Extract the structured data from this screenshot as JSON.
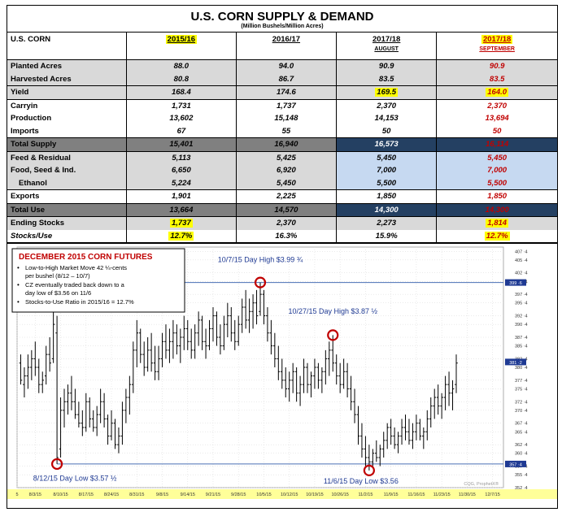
{
  "table": {
    "title": "U.S. CORN SUPPLY & DEMAND",
    "subtitle": "(Million Bushels/Million Acres)",
    "columns": [
      {
        "label": "U.S. CORN",
        "sub": ""
      },
      {
        "label": "2015/16",
        "sub": ""
      },
      {
        "label": "2016/17",
        "sub": ""
      },
      {
        "label": "2017/18",
        "sub": "AUGUST"
      },
      {
        "label": "2017/18",
        "sub": "SEPTEMBER"
      }
    ],
    "rows": [
      {
        "label": "Planted Acres",
        "values": [
          "88.0",
          "94.0",
          "90.9",
          "90.9"
        ]
      },
      {
        "label": "Harvested Acres",
        "values": [
          "80.8",
          "86.7",
          "83.5",
          "83.5"
        ]
      },
      {
        "label": "Yield",
        "values": [
          "168.4",
          "174.6",
          "169.5",
          "164.0"
        ]
      },
      {
        "label": "Carryin",
        "values": [
          "1,731",
          "1,737",
          "2,370",
          "2,370"
        ]
      },
      {
        "label": "Production",
        "values": [
          "13,602",
          "15,148",
          "14,153",
          "13,694"
        ]
      },
      {
        "label": "Imports",
        "values": [
          "67",
          "55",
          "50",
          "50"
        ]
      },
      {
        "label": "Total Supply",
        "values": [
          "15,401",
          "16,940",
          "16,573",
          "16,114"
        ]
      },
      {
        "label": "Feed & Residual",
        "values": [
          "5,113",
          "5,425",
          "5,450",
          "5,450"
        ]
      },
      {
        "label": "Food, Seed & Ind.",
        "values": [
          "6,650",
          "6,920",
          "7,000",
          "7,000"
        ]
      },
      {
        "label": "Ethanol",
        "values": [
          "5,224",
          "5,450",
          "5,500",
          "5,500"
        ]
      },
      {
        "label": "Exports",
        "values": [
          "1,901",
          "2,225",
          "1,850",
          "1,850"
        ]
      },
      {
        "label": "Total Use",
        "values": [
          "13,664",
          "14,570",
          "14,300",
          "14,300"
        ]
      },
      {
        "label": "Ending Stocks",
        "values": [
          "1,737",
          "2,370",
          "2,273",
          "1,814"
        ]
      },
      {
        "label": "Stocks/Use",
        "values": [
          "12.7%",
          "16.3%",
          "15.9%",
          "12.7%"
        ]
      }
    ]
  },
  "chart_data": {
    "type": "bar",
    "subtype": "ohlc",
    "title": "DECEMBER 2015 CORN FUTURES",
    "notes": [
      "Low-to-High Market Move 42 ¼-cents per bushel (8/12 – 10/7)",
      "CZ eventually traded back down to a day low of $3.56 on 11/6",
      "Stocks-to-Use Ratio in 2015/16 = 12.7%"
    ],
    "annotations": [
      {
        "text": "10/7/15 Day High $3.99 ¾",
        "day": 59,
        "price": 399.75
      },
      {
        "text": "10/27/15 Day High $3.87 ½",
        "day": 79,
        "price": 387.5
      },
      {
        "text": "8/12/15 Day Low $3.57 ½",
        "day": 3,
        "price": 357.5
      },
      {
        "text": "11/6/15 Day Low $3.56",
        "day": 89,
        "price": 356
      }
    ],
    "hlines": [
      399.75,
      357.5
    ],
    "ylim": [
      352,
      408
    ],
    "yticks": [
      352,
      355,
      357,
      360,
      362,
      365,
      367,
      370,
      372,
      375,
      377,
      380,
      382,
      385,
      387,
      390,
      392,
      395,
      397,
      400,
      402,
      405,
      407
    ],
    "ytick_labels": [
      "352 ·4",
      "355 ·4",
      "357 ·4",
      "360 ·4",
      "362 ·4",
      "365 ·4",
      "367 ·4",
      "370 ·4",
      "372 ·4",
      "375 ·4",
      "377 ·4",
      "380 ·4",
      "382 ·4",
      "385 ·4",
      "387 ·4",
      "390 ·4",
      "392 ·4",
      "395 ·4",
      "397 ·4",
      "400 ·4",
      "402 ·4",
      "405 ·4",
      "407 ·4"
    ],
    "price_tags": [
      {
        "value": 399.75,
        "label": "399 ·6"
      },
      {
        "value": 357.5,
        "label": "357 ·4"
      },
      {
        "value": 381.25,
        "label": "381 ·2"
      }
    ],
    "xlim": [
      -8,
      126
    ],
    "xticks": [
      -8,
      -3,
      4,
      11,
      18,
      25,
      32,
      39,
      46,
      53,
      60,
      67,
      74,
      81,
      88,
      95,
      102,
      109,
      116,
      123
    ],
    "xtick_labels": [
      "5",
      "8/3/15",
      "8/10/15",
      "8/17/15",
      "8/24/15",
      "8/31/15",
      "9/8/15",
      "9/14/15",
      "9/21/15",
      "9/28/15",
      "10/5/15",
      "10/12/15",
      "10/19/15",
      "10/26/15",
      "11/2/15",
      "11/9/15",
      "11/16/15",
      "11/23/15",
      "11/30/15",
      "12/7/15"
    ],
    "watermark": "CQG, ProphetX®",
    "bars": [
      {
        "day": -7,
        "h": 383,
        "l": 376,
        "o": 381,
        "c": 377
      },
      {
        "day": -6,
        "h": 380,
        "l": 373,
        "o": 376,
        "c": 378
      },
      {
        "day": -5,
        "h": 383,
        "l": 375,
        "o": 378,
        "c": 380
      },
      {
        "day": -4,
        "h": 384,
        "l": 377,
        "o": 380,
        "c": 382
      },
      {
        "day": -3,
        "h": 386,
        "l": 378,
        "o": 382,
        "c": 380
      },
      {
        "day": -2,
        "h": 382,
        "l": 374,
        "o": 380,
        "c": 376
      },
      {
        "day": -1,
        "h": 379,
        "l": 374,
        "o": 376,
        "c": 377
      },
      {
        "day": 0,
        "h": 385,
        "l": 376,
        "o": 378,
        "c": 383
      },
      {
        "day": 1,
        "h": 387,
        "l": 379,
        "o": 383,
        "c": 381
      },
      {
        "day": 2,
        "h": 393,
        "l": 381,
        "o": 382,
        "c": 390
      },
      {
        "day": 3,
        "h": 392,
        "l": 357.5,
        "o": 388,
        "c": 359
      },
      {
        "day": 4,
        "h": 373,
        "l": 359,
        "o": 361,
        "c": 370
      },
      {
        "day": 5,
        "h": 375,
        "l": 366,
        "o": 370,
        "c": 372
      },
      {
        "day": 6,
        "h": 376,
        "l": 369,
        "o": 372,
        "c": 374
      },
      {
        "day": 7,
        "h": 378,
        "l": 370,
        "o": 374,
        "c": 372
      },
      {
        "day": 8,
        "h": 375,
        "l": 368,
        "o": 372,
        "c": 369
      },
      {
        "day": 9,
        "h": 372,
        "l": 366,
        "o": 369,
        "c": 367
      },
      {
        "day": 10,
        "h": 370,
        "l": 364,
        "o": 367,
        "c": 366
      },
      {
        "day": 11,
        "h": 374,
        "l": 365,
        "o": 366,
        "c": 372
      },
      {
        "day": 12,
        "h": 373,
        "l": 366,
        "o": 372,
        "c": 368
      },
      {
        "day": 13,
        "h": 370,
        "l": 365,
        "o": 368,
        "c": 366
      },
      {
        "day": 14,
        "h": 371,
        "l": 364,
        "o": 366,
        "c": 369
      },
      {
        "day": 15,
        "h": 375,
        "l": 367,
        "o": 369,
        "c": 372
      },
      {
        "day": 16,
        "h": 374,
        "l": 366,
        "o": 372,
        "c": 368
      },
      {
        "day": 17,
        "h": 369,
        "l": 362,
        "o": 368,
        "c": 364
      },
      {
        "day": 18,
        "h": 370,
        "l": 363,
        "o": 364,
        "c": 367
      },
      {
        "day": 19,
        "h": 368,
        "l": 361,
        "o": 367,
        "c": 362
      },
      {
        "day": 20,
        "h": 366,
        "l": 360,
        "o": 362,
        "c": 364
      },
      {
        "day": 21,
        "h": 372,
        "l": 362,
        "o": 364,
        "c": 370
      },
      {
        "day": 22,
        "h": 375,
        "l": 367,
        "o": 370,
        "c": 373
      },
      {
        "day": 23,
        "h": 378,
        "l": 369,
        "o": 373,
        "c": 376
      },
      {
        "day": 24,
        "h": 386,
        "l": 374,
        "o": 376,
        "c": 384
      },
      {
        "day": 25,
        "h": 391,
        "l": 380,
        "o": 384,
        "c": 388
      },
      {
        "day": 26,
        "h": 389,
        "l": 381,
        "o": 388,
        "c": 383
      },
      {
        "day": 27,
        "h": 386,
        "l": 378,
        "o": 383,
        "c": 380
      },
      {
        "day": 28,
        "h": 387,
        "l": 379,
        "o": 380,
        "c": 384
      },
      {
        "day": 29,
        "h": 388,
        "l": 379,
        "o": 384,
        "c": 381
      },
      {
        "day": 30,
        "h": 385,
        "l": 377,
        "o": 381,
        "c": 379
      },
      {
        "day": 31,
        "h": 385,
        "l": 377,
        "o": 379,
        "c": 382
      },
      {
        "day": 32,
        "h": 388,
        "l": 380,
        "o": 382,
        "c": 386
      },
      {
        "day": 33,
        "h": 390,
        "l": 382,
        "o": 386,
        "c": 384
      },
      {
        "day": 34,
        "h": 389,
        "l": 381,
        "o": 384,
        "c": 386
      },
      {
        "day": 35,
        "h": 391,
        "l": 382,
        "o": 386,
        "c": 388
      },
      {
        "day": 36,
        "h": 390,
        "l": 383,
        "o": 388,
        "c": 385
      },
      {
        "day": 37,
        "h": 389,
        "l": 381,
        "o": 385,
        "c": 387
      },
      {
        "day": 38,
        "h": 392,
        "l": 384,
        "o": 387,
        "c": 389
      },
      {
        "day": 39,
        "h": 391,
        "l": 384,
        "o": 389,
        "c": 386
      },
      {
        "day": 40,
        "h": 389,
        "l": 382,
        "o": 386,
        "c": 384
      },
      {
        "day": 41,
        "h": 390,
        "l": 382,
        "o": 384,
        "c": 388
      },
      {
        "day": 42,
        "h": 393,
        "l": 385,
        "o": 388,
        "c": 391
      },
      {
        "day": 43,
        "h": 392,
        "l": 384,
        "o": 391,
        "c": 386
      },
      {
        "day": 44,
        "h": 389,
        "l": 382,
        "o": 386,
        "c": 385
      },
      {
        "day": 45,
        "h": 391,
        "l": 384,
        "o": 385,
        "c": 389
      },
      {
        "day": 46,
        "h": 394,
        "l": 386,
        "o": 389,
        "c": 392
      },
      {
        "day": 47,
        "h": 393,
        "l": 385,
        "o": 392,
        "c": 387
      },
      {
        "day": 48,
        "h": 390,
        "l": 383,
        "o": 387,
        "c": 385
      },
      {
        "day": 49,
        "h": 392,
        "l": 384,
        "o": 385,
        "c": 390
      },
      {
        "day": 50,
        "h": 395,
        "l": 387,
        "o": 390,
        "c": 392
      },
      {
        "day": 51,
        "h": 394,
        "l": 386,
        "o": 392,
        "c": 388
      },
      {
        "day": 52,
        "h": 391,
        "l": 384,
        "o": 388,
        "c": 386
      },
      {
        "day": 53,
        "h": 392,
        "l": 385,
        "o": 386,
        "c": 390
      },
      {
        "day": 54,
        "h": 396,
        "l": 388,
        "o": 390,
        "c": 394
      },
      {
        "day": 55,
        "h": 398,
        "l": 389,
        "o": 394,
        "c": 391
      },
      {
        "day": 56,
        "h": 396,
        "l": 388,
        "o": 391,
        "c": 393
      },
      {
        "day": 57,
        "h": 397,
        "l": 389,
        "o": 393,
        "c": 395
      },
      {
        "day": 58,
        "h": 398,
        "l": 390,
        "o": 395,
        "c": 392
      },
      {
        "day": 59,
        "h": 399.75,
        "l": 392,
        "o": 393,
        "c": 397
      },
      {
        "day": 60,
        "h": 398,
        "l": 390,
        "o": 397,
        "c": 392
      },
      {
        "day": 61,
        "h": 394,
        "l": 386,
        "o": 392,
        "c": 388
      },
      {
        "day": 62,
        "h": 391,
        "l": 383,
        "o": 388,
        "c": 385
      },
      {
        "day": 63,
        "h": 388,
        "l": 380,
        "o": 385,
        "c": 382
      },
      {
        "day": 64,
        "h": 385,
        "l": 377,
        "o": 382,
        "c": 379
      },
      {
        "day": 65,
        "h": 382,
        "l": 375,
        "o": 379,
        "c": 377
      },
      {
        "day": 66,
        "h": 380,
        "l": 373,
        "o": 377,
        "c": 375
      },
      {
        "day": 67,
        "h": 379,
        "l": 372,
        "o": 375,
        "c": 377
      },
      {
        "day": 68,
        "h": 381,
        "l": 374,
        "o": 377,
        "c": 379
      },
      {
        "day": 69,
        "h": 380,
        "l": 372,
        "o": 379,
        "c": 374
      },
      {
        "day": 70,
        "h": 378,
        "l": 371,
        "o": 374,
        "c": 376
      },
      {
        "day": 71,
        "h": 382,
        "l": 374,
        "o": 376,
        "c": 380
      },
      {
        "day": 72,
        "h": 381,
        "l": 374,
        "o": 380,
        "c": 376
      },
      {
        "day": 73,
        "h": 379,
        "l": 373,
        "o": 376,
        "c": 378
      },
      {
        "day": 74,
        "h": 382,
        "l": 375,
        "o": 378,
        "c": 380
      },
      {
        "day": 75,
        "h": 381,
        "l": 375,
        "o": 380,
        "c": 377
      },
      {
        "day": 76,
        "h": 380,
        "l": 374,
        "o": 377,
        "c": 379
      },
      {
        "day": 77,
        "h": 384,
        "l": 376,
        "o": 379,
        "c": 382
      },
      {
        "day": 78,
        "h": 386,
        "l": 378,
        "o": 382,
        "c": 384
      },
      {
        "day": 79,
        "h": 387.5,
        "l": 379,
        "o": 384,
        "c": 381
      },
      {
        "day": 80,
        "h": 383,
        "l": 376,
        "o": 381,
        "c": 378
      },
      {
        "day": 81,
        "h": 381,
        "l": 374,
        "o": 378,
        "c": 376
      },
      {
        "day": 82,
        "h": 382,
        "l": 375,
        "o": 376,
        "c": 379
      },
      {
        "day": 83,
        "h": 381,
        "l": 373,
        "o": 379,
        "c": 375
      },
      {
        "day": 84,
        "h": 378,
        "l": 370,
        "o": 375,
        "c": 372
      },
      {
        "day": 85,
        "h": 375,
        "l": 367,
        "o": 372,
        "c": 369
      },
      {
        "day": 86,
        "h": 371,
        "l": 362,
        "o": 369,
        "c": 364
      },
      {
        "day": 87,
        "h": 367,
        "l": 359,
        "o": 364,
        "c": 361
      },
      {
        "day": 88,
        "h": 364,
        "l": 357,
        "o": 361,
        "c": 359
      },
      {
        "day": 89,
        "h": 362,
        "l": 356,
        "o": 359,
        "c": 358
      },
      {
        "day": 90,
        "h": 361,
        "l": 357,
        "o": 358,
        "c": 360
      },
      {
        "day": 91,
        "h": 363,
        "l": 358,
        "o": 360,
        "c": 359
      },
      {
        "day": 92,
        "h": 362,
        "l": 357,
        "o": 359,
        "c": 361
      },
      {
        "day": 93,
        "h": 365,
        "l": 359,
        "o": 361,
        "c": 363
      },
      {
        "day": 94,
        "h": 367,
        "l": 361,
        "o": 363,
        "c": 366
      },
      {
        "day": 95,
        "h": 368,
        "l": 362,
        "o": 366,
        "c": 364
      },
      {
        "day": 96,
        "h": 366,
        "l": 361,
        "o": 364,
        "c": 362
      },
      {
        "day": 97,
        "h": 365,
        "l": 360,
        "o": 362,
        "c": 364
      },
      {
        "day": 98,
        "h": 368,
        "l": 362,
        "o": 364,
        "c": 366
      },
      {
        "day": 99,
        "h": 369,
        "l": 363,
        "o": 366,
        "c": 365
      },
      {
        "day": 100,
        "h": 368,
        "l": 362,
        "o": 365,
        "c": 363
      },
      {
        "day": 101,
        "h": 367,
        "l": 361,
        "o": 363,
        "c": 365
      },
      {
        "day": 102,
        "h": 369,
        "l": 363,
        "o": 365,
        "c": 367
      },
      {
        "day": 103,
        "h": 368,
        "l": 363,
        "o": 367,
        "c": 364
      },
      {
        "day": 104,
        "h": 366,
        "l": 361,
        "o": 364,
        "c": 365
      },
      {
        "day": 105,
        "h": 370,
        "l": 363,
        "o": 365,
        "c": 368
      },
      {
        "day": 106,
        "h": 373,
        "l": 366,
        "o": 368,
        "c": 371
      },
      {
        "day": 107,
        "h": 375,
        "l": 368,
        "o": 371,
        "c": 373
      },
      {
        "day": 108,
        "h": 376,
        "l": 369,
        "o": 373,
        "c": 371
      },
      {
        "day": 109,
        "h": 374,
        "l": 368,
        "o": 371,
        "c": 373
      },
      {
        "day": 110,
        "h": 378,
        "l": 370,
        "o": 373,
        "c": 376
      },
      {
        "day": 111,
        "h": 379,
        "l": 371,
        "o": 376,
        "c": 374
      },
      {
        "day": 112,
        "h": 377,
        "l": 370,
        "o": 374,
        "c": 375
      },
      {
        "day": 113,
        "h": 383,
        "l": 374,
        "o": 376,
        "c": 381
      }
    ]
  }
}
